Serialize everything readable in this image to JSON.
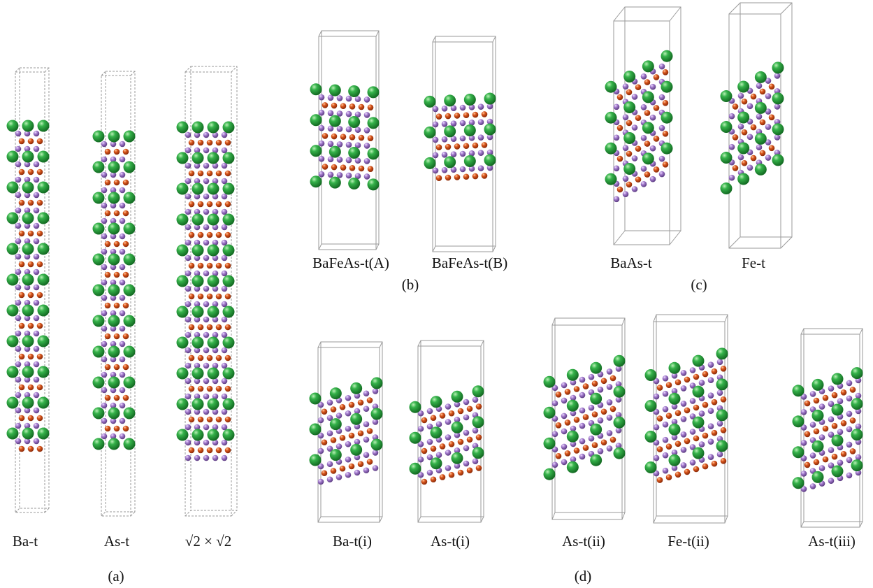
{
  "panels": [
    {
      "label": "(a)",
      "structures": [
        "Ba-t",
        "As-t",
        "√2 × √2"
      ]
    },
    {
      "label": "(b)",
      "structures": [
        "BaFeAs-t(A)",
        "BaFeAs-t(B)"
      ]
    },
    {
      "label": "(c)",
      "structures": [
        "BaAs-t",
        "Fe-t"
      ]
    },
    {
      "label": "(d)",
      "structures": [
        "Ba-t(i)",
        "As-t(i)",
        "As-t(ii)",
        "Fe-t(ii)",
        "As-t(iii)"
      ]
    }
  ]
}
